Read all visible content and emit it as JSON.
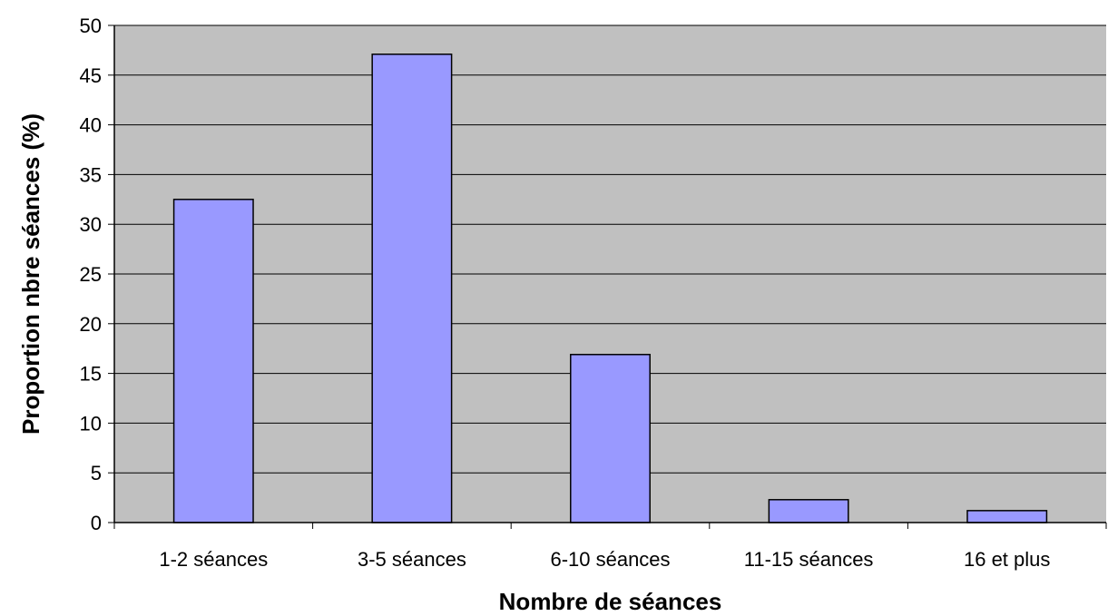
{
  "chart_data": {
    "type": "bar",
    "title": "",
    "xlabel": "Nombre de séances",
    "ylabel": "Proportion nbre séances (%)",
    "categories": [
      "1-2 séances",
      "3-5 séances",
      "6-10 séances",
      "11-15 séances",
      "16 et plus"
    ],
    "values": [
      32.5,
      47.1,
      16.9,
      2.3,
      1.2
    ],
    "ylim": [
      0,
      50
    ],
    "yticks": [
      "0",
      "5",
      "10",
      "15",
      "20",
      "25",
      "30",
      "35",
      "40",
      "45",
      "50"
    ],
    "grid": true,
    "legend": "none"
  },
  "colors": {
    "plot_background": "#c0c0c0",
    "bar_fill": "#9999ff",
    "bar_stroke": "#000000",
    "gridline": "#000000"
  }
}
